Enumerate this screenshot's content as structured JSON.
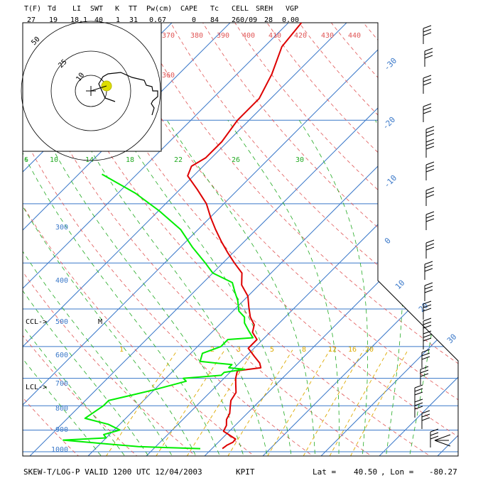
{
  "header": {
    "labels": [
      "T(F)",
      "Td",
      "LI",
      "SWT",
      "K",
      "TT",
      "Pw(cm)",
      "CAPE",
      "Tc",
      "CELL",
      "SREH",
      "VGP"
    ],
    "values": [
      "27",
      "19",
      "18.1",
      "40",
      "1",
      "31",
      "0.67",
      "0",
      "84",
      "260/09",
      "28",
      "0.00"
    ]
  },
  "footer": {
    "title": "SKEW-T/LOG-P VALID 1200 UTC 12/04/2003",
    "station": "KPIT",
    "lat_label": "Lat =",
    "lat_value": "40.50",
    "lon_label": ", Lon =",
    "lon_value": "-80.27"
  },
  "colors": {
    "isobar": "#3a78c9",
    "isotherm": "#3a78c9",
    "dry_adiabat": "#e05555",
    "moist_adiabat": "#22aa22",
    "mixing_ratio": "#ddaa00",
    "temperature": "#dd0000",
    "dewpoint": "#00ee00",
    "wind": "#000000",
    "hodograph_marker": "#dddd00"
  },
  "chart_data": {
    "type": "line",
    "title": "SKEW-T/LOG-P VALID 1200 UTC 12/04/2003",
    "ylabel": "",
    "xlabel": "",
    "pressure_levels": [
      300,
      400,
      500,
      600,
      700,
      800,
      900,
      1000
    ],
    "isotherm_labels": [
      "-30",
      "-20",
      "-10",
      "0",
      "10",
      "20",
      "30"
    ],
    "dry_adiabat_labels": [
      "360",
      "370",
      "380",
      "390",
      "400",
      "410",
      "420",
      "430",
      "440"
    ],
    "moist_adiabat_labels": [
      "6",
      "10",
      "14",
      "18",
      "22",
      "26",
      "30"
    ],
    "mixing_ratio_labels": [
      "1",
      "2",
      "3",
      "5",
      "8",
      "12",
      "16",
      "20"
    ],
    "markers": {
      "ccl": "CCL->",
      "lcl": "LCL->",
      "m": "M"
    },
    "series": [
      {
        "values_p": [
          985,
          968,
          955,
          940,
          905,
          880,
          855,
          830,
          805,
          780,
          750,
          720,
          700,
          675,
          665,
          650,
          630,
          605,
          580,
          560,
          540,
          520,
          495,
          470,
          445,
          420,
          400,
          380,
          360,
          340,
          320,
          300,
          280,
          262,
          250,
          240,
          222,
          200,
          180,
          160,
          140,
          120,
          100
        ],
        "values_t": [
          1.8,
          2.0,
          2.5,
          2.4,
          -1.0,
          -1.5,
          -2.5,
          -3.0,
          -4.0,
          -5.0,
          -5.5,
          -7.0,
          -8.0,
          -9.0,
          -5.5,
          -6.5,
          -8.5,
          -11.0,
          -11.0,
          -13.0,
          -14.0,
          -16.0,
          -18.0,
          -20.0,
          -23.0,
          -25.0,
          -28.0,
          -31.0,
          -34.0,
          -37.0,
          -40.0,
          -43.0,
          -47.0,
          -51.0,
          -52.0,
          -51.0,
          -51.0,
          -52.0,
          -52.0,
          -54.0,
          -57.0,
          -58.0,
          -58.0
        ]
      },
      {
        "values_p": [
          985,
          980,
          975,
          960,
          945,
          935,
          920,
          900,
          875,
          850,
          800,
          780,
          760,
          740,
          710,
          700,
          690,
          680,
          670,
          665,
          658,
          655,
          650,
          645,
          620,
          600,
          580,
          575,
          555,
          535,
          520,
          505,
          480,
          460,
          440,
          420,
          400,
          370,
          340,
          310,
          285,
          260
        ],
        "values_t": [
          -2.0,
          -8.0,
          -13.0,
          -20.0,
          -27.0,
          -20.0,
          -21.0,
          -19.0,
          -22.0,
          -27.0,
          -26.0,
          -26.0,
          -23.0,
          -20.0,
          -16.0,
          -17.0,
          -11.0,
          -11.0,
          -8.0,
          -11.0,
          -11.0,
          -11.0,
          -14.0,
          -17.0,
          -18.0,
          -16.0,
          -16.0,
          -12.0,
          -14.0,
          -16.0,
          -17.0,
          -19.0,
          -21.0,
          -23.0,
          -25.0,
          -30.0,
          -33.0,
          -38.0,
          -43.0,
          -50.0,
          -57.0,
          -66.0
        ]
      }
    ]
  }
}
